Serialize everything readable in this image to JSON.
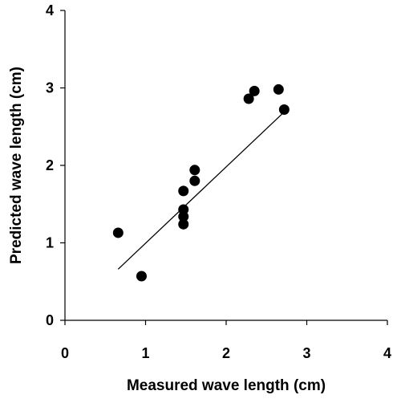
{
  "chart_data": {
    "type": "scatter",
    "title": "",
    "xlabel": "Measured wave length (cm)",
    "ylabel": "Predicted wave length (cm)",
    "xlim": [
      0,
      4
    ],
    "ylim": [
      0,
      4
    ],
    "x_ticks": [
      "0",
      "1",
      "2",
      "3",
      "4"
    ],
    "y_ticks": [
      "0",
      "1",
      "2",
      "3",
      "4"
    ],
    "grid": false,
    "legend": "none",
    "marker_color": "#000000",
    "points": [
      {
        "x": 0.66,
        "y": 1.13
      },
      {
        "x": 0.95,
        "y": 0.57
      },
      {
        "x": 1.47,
        "y": 1.67
      },
      {
        "x": 1.47,
        "y": 1.43
      },
      {
        "x": 1.47,
        "y": 1.34
      },
      {
        "x": 1.47,
        "y": 1.24
      },
      {
        "x": 1.61,
        "y": 1.94
      },
      {
        "x": 1.61,
        "y": 1.8
      },
      {
        "x": 2.28,
        "y": 2.86
      },
      {
        "x": 2.35,
        "y": 2.96
      },
      {
        "x": 2.65,
        "y": 2.98
      },
      {
        "x": 2.72,
        "y": 2.72
      }
    ],
    "trendline": {
      "x": [
        0.66,
        2.72
      ],
      "y": [
        0.66,
        2.69
      ]
    }
  }
}
